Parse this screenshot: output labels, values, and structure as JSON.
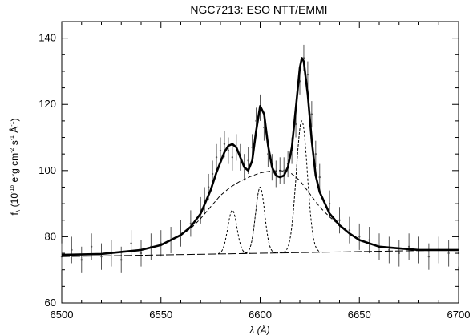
{
  "chart_data": {
    "type": "line",
    "title": "NGC7213: ESO NTT/EMMI",
    "xlabel": "λ (Å)",
    "ylabel": {
      "prefix": "f",
      "sub": "λ",
      "parts": [
        "(10",
        "-16",
        " erg cm",
        "-2",
        " s",
        "-1",
        " Å",
        "-1",
        ")"
      ]
    },
    "xlim": [
      6500,
      6700
    ],
    "ylim": [
      60,
      145
    ],
    "xticks": [
      6500,
      6550,
      6600,
      6650,
      6700
    ],
    "yticks": [
      60,
      80,
      100,
      120,
      140
    ],
    "grid": false,
    "legend": "none",
    "colors": {
      "data": "#555555",
      "total_fit": "#000000",
      "components": "#000000"
    },
    "observed": {
      "name": "",
      "style": "points-with-error-bars",
      "x": [
        6500,
        6505,
        6510,
        6515,
        6520,
        6525,
        6530,
        6535,
        6540,
        6545,
        6550,
        6555,
        6560,
        6565,
        6570,
        6572,
        6574,
        6576,
        6578,
        6580,
        6582,
        6584,
        6586,
        6588,
        6590,
        6592,
        6594,
        6596,
        6598,
        6600,
        6602,
        6604,
        6606,
        6608,
        6610,
        6612,
        6614,
        6616,
        6618,
        6620,
        6622,
        6624,
        6626,
        6628,
        6630,
        6635,
        6640,
        6645,
        6650,
        6655,
        6660,
        6665,
        6670,
        6675,
        6680,
        6685,
        6690,
        6695,
        6700
      ],
      "y": [
        74,
        76,
        73,
        77,
        74,
        75,
        73,
        78,
        75,
        77,
        78,
        79,
        81,
        84,
        88,
        91,
        95,
        99,
        104,
        106,
        108,
        106,
        104,
        107,
        104,
        101,
        103,
        107,
        115,
        119,
        113,
        105,
        101,
        99,
        100,
        100,
        102,
        106,
        114,
        127,
        134,
        129,
        117,
        105,
        98,
        90,
        85,
        82,
        80,
        79,
        77,
        76,
        75,
        77,
        76,
        74,
        76,
        75,
        75
      ],
      "yerr": 4
    },
    "total_fit": {
      "name": "",
      "x": [
        6500,
        6520,
        6540,
        6550,
        6560,
        6565,
        6570,
        6575,
        6578,
        6580,
        6582,
        6584,
        6586,
        6588,
        6590,
        6592,
        6594,
        6596,
        6598,
        6600,
        6602,
        6604,
        6606,
        6608,
        6610,
        6612,
        6614,
        6616,
        6618,
        6620,
        6621,
        6622,
        6624,
        6626,
        6628,
        6630,
        6635,
        6640,
        6645,
        6650,
        6660,
        6670,
        6680,
        6690,
        6700
      ],
      "y": [
        74.5,
        74.8,
        76,
        77.5,
        80.5,
        83,
        87,
        94,
        99.5,
        102.5,
        105.5,
        107.5,
        108,
        107,
        104,
        101,
        100,
        103,
        112,
        119.5,
        117,
        107.5,
        101,
        98.5,
        98,
        98.5,
        101,
        107,
        119,
        131,
        134,
        133,
        123,
        109,
        98.5,
        93.5,
        87,
        83.5,
        81,
        79,
        77,
        76.5,
        76,
        76,
        76
      ]
    },
    "broad_component": {
      "name": "",
      "x": [
        6500,
        6520,
        6540,
        6550,
        6560,
        6565,
        6570,
        6575,
        6580,
        6585,
        6590,
        6595,
        6600,
        6605,
        6610,
        6615,
        6620,
        6625,
        6630,
        6635,
        6640,
        6645,
        6650,
        6660,
        6670,
        6680,
        6690,
        6700
      ],
      "y": [
        74.5,
        74.8,
        76,
        77.5,
        80.5,
        82.5,
        85.5,
        89,
        92.5,
        95,
        96.8,
        98.2,
        99.3,
        99.8,
        100,
        99.5,
        97,
        93,
        89,
        86,
        83.5,
        81,
        79,
        77,
        76.5,
        76,
        76,
        76
      ]
    },
    "narrow_components": [
      {
        "name": "",
        "center": 6586,
        "peak": 88,
        "sigma": 2.3
      },
      {
        "name": "",
        "center": 6600,
        "peak": 95,
        "sigma": 2.3
      },
      {
        "name": "",
        "center": 6621,
        "peak": 115,
        "sigma": 2.8
      }
    ],
    "continuum": {
      "name": "",
      "x": [
        6500,
        6700
      ],
      "y": [
        74,
        76
      ]
    }
  }
}
